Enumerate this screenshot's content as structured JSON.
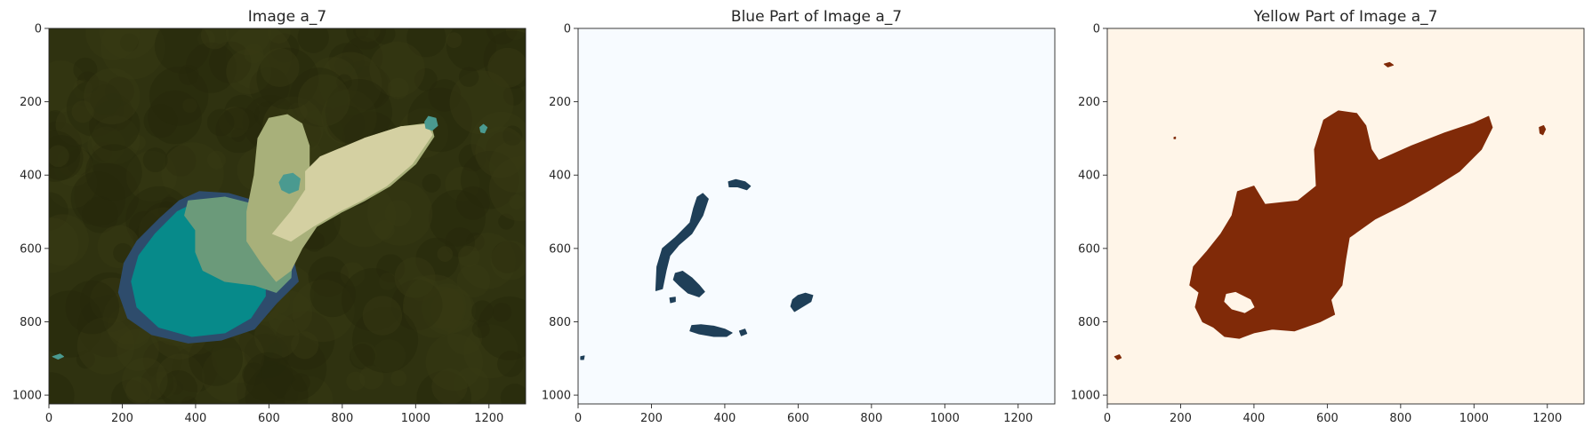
{
  "chart_data": [
    {
      "type": "heatmap",
      "title": "Image a_7",
      "xlim": [
        0,
        1300
      ],
      "ylim": [
        1024,
        0
      ],
      "xticks": [
        0,
        200,
        400,
        600,
        800,
        1000,
        1200
      ],
      "yticks": [
        0,
        200,
        400,
        600,
        800,
        1000
      ],
      "grid": false,
      "colors": {
        "background": "#2f3210",
        "outline": "#2e4c6c",
        "body_teal": "#078a8a",
        "body_green": "#6b9a7a",
        "body_olive": "#a8b07a",
        "ear_light": "#d4d0a2",
        "spot": "#4a9a90"
      },
      "regions": [
        {
          "name": "outline",
          "points": [
            [
              410,
              445
            ],
            [
              355,
              470
            ],
            [
              300,
              520
            ],
            [
              240,
              580
            ],
            [
              205,
              640
            ],
            [
              190,
              720
            ],
            [
              215,
              790
            ],
            [
              280,
              835
            ],
            [
              380,
              858
            ],
            [
              470,
              850
            ],
            [
              560,
              820
            ],
            [
              620,
              750
            ],
            [
              680,
              690
            ],
            [
              660,
              600
            ],
            [
              620,
              520
            ],
            [
              560,
              470
            ],
            [
              490,
              450
            ]
          ]
        },
        {
          "name": "body_teal",
          "points": [
            [
              410,
              470
            ],
            [
              350,
              500
            ],
            [
              290,
              560
            ],
            [
              245,
              620
            ],
            [
              225,
              690
            ],
            [
              240,
              760
            ],
            [
              300,
              815
            ],
            [
              390,
              840
            ],
            [
              480,
              830
            ],
            [
              550,
              790
            ],
            [
              590,
              730
            ],
            [
              590,
              660
            ],
            [
              550,
              580
            ],
            [
              490,
              510
            ]
          ]
        },
        {
          "name": "body_green",
          "points": [
            [
              380,
              470
            ],
            [
              480,
              460
            ],
            [
              560,
              480
            ],
            [
              620,
              520
            ],
            [
              665,
              590
            ],
            [
              660,
              680
            ],
            [
              620,
              720
            ],
            [
              560,
              700
            ],
            [
              480,
              690
            ],
            [
              420,
              660
            ],
            [
              400,
              610
            ],
            [
              400,
              550
            ],
            [
              370,
              510
            ]
          ]
        },
        {
          "name": "body_olive",
          "points": [
            [
              540,
              500
            ],
            [
              560,
              400
            ],
            [
              570,
              300
            ],
            [
              600,
              245
            ],
            [
              650,
              235
            ],
            [
              690,
              260
            ],
            [
              710,
              320
            ],
            [
              710,
              390
            ],
            [
              770,
              350
            ],
            [
              860,
              300
            ],
            [
              960,
              268
            ],
            [
              1040,
              258
            ],
            [
              1050,
              295
            ],
            [
              1000,
              370
            ],
            [
              930,
              430
            ],
            [
              860,
              470
            ],
            [
              800,
              500
            ],
            [
              730,
              540
            ],
            [
              690,
              600
            ],
            [
              660,
              660
            ],
            [
              620,
              690
            ],
            [
              580,
              640
            ],
            [
              540,
              580
            ]
          ]
        },
        {
          "name": "ear_light",
          "points": [
            [
              740,
              350
            ],
            [
              860,
              300
            ],
            [
              960,
              268
            ],
            [
              1030,
              262
            ],
            [
              1045,
              290
            ],
            [
              990,
              370
            ],
            [
              920,
              430
            ],
            [
              850,
              470
            ],
            [
              790,
              500
            ],
            [
              720,
              540
            ],
            [
              660,
              580
            ],
            [
              610,
              560
            ],
            [
              660,
              500
            ],
            [
              700,
              440
            ],
            [
              700,
              390
            ]
          ]
        },
        {
          "name": "spot",
          "points": [
            [
              628,
              420
            ],
            [
              640,
              400
            ],
            [
              665,
              395
            ],
            [
              685,
              410
            ],
            [
              680,
              440
            ],
            [
              655,
              450
            ],
            [
              635,
              440
            ]
          ]
        },
        {
          "name": "spot",
          "points": [
            [
              1025,
              255
            ],
            [
              1035,
              240
            ],
            [
              1055,
              245
            ],
            [
              1060,
              265
            ],
            [
              1045,
              278
            ],
            [
              1028,
              272
            ]
          ]
        },
        {
          "name": "spot",
          "points": [
            [
              1175,
              270
            ],
            [
              1185,
              262
            ],
            [
              1195,
              270
            ],
            [
              1188,
              285
            ],
            [
              1178,
              283
            ]
          ]
        },
        {
          "name": "spot",
          "points": [
            [
              10,
              895
            ],
            [
              30,
              888
            ],
            [
              40,
              895
            ],
            [
              25,
              902
            ]
          ]
        }
      ]
    },
    {
      "type": "heatmap",
      "title": "Blue Part of Image a_7",
      "xlim": [
        0,
        1300
      ],
      "ylim": [
        1024,
        0
      ],
      "xticks": [
        0,
        200,
        400,
        600,
        800,
        1000,
        1200
      ],
      "yticks": [
        0,
        200,
        400,
        600,
        800,
        1000
      ],
      "grid": false,
      "colors": {
        "background": "#f7fbff",
        "foreground": "#1f3f58"
      },
      "regions": [
        {
          "name": "blob",
          "points": [
            [
              325,
              460
            ],
            [
              340,
              450
            ],
            [
              355,
              465
            ],
            [
              340,
              510
            ],
            [
              310,
              560
            ],
            [
              275,
              590
            ],
            [
              250,
              620
            ],
            [
              240,
              660
            ],
            [
              230,
              710
            ],
            [
              212,
              715
            ],
            [
              215,
              650
            ],
            [
              230,
              600
            ],
            [
              265,
              570
            ],
            [
              305,
              530
            ],
            [
              315,
              490
            ]
          ]
        },
        {
          "name": "blob",
          "points": [
            [
              265,
              668
            ],
            [
              285,
              662
            ],
            [
              310,
              680
            ],
            [
              330,
              700
            ],
            [
              345,
              718
            ],
            [
              330,
              732
            ],
            [
              300,
              722
            ],
            [
              275,
              700
            ],
            [
              260,
              685
            ]
          ]
        },
        {
          "name": "blob",
          "points": [
            [
              250,
              735
            ],
            [
              265,
              733
            ],
            [
              265,
              745
            ],
            [
              252,
              748
            ]
          ]
        },
        {
          "name": "blob",
          "points": [
            [
              410,
              418
            ],
            [
              430,
              412
            ],
            [
              455,
              418
            ],
            [
              470,
              430
            ],
            [
              460,
              440
            ],
            [
              435,
              432
            ],
            [
              412,
              432
            ]
          ]
        },
        {
          "name": "blob",
          "points": [
            [
              310,
              810
            ],
            [
              335,
              808
            ],
            [
              370,
              812
            ],
            [
              400,
              820
            ],
            [
              420,
              830
            ],
            [
              405,
              840
            ],
            [
              370,
              840
            ],
            [
              330,
              833
            ],
            [
              305,
              825
            ]
          ]
        },
        {
          "name": "blob",
          "points": [
            [
              440,
              825
            ],
            [
              455,
              820
            ],
            [
              460,
              832
            ],
            [
              445,
              838
            ]
          ]
        },
        {
          "name": "blob",
          "points": [
            [
              585,
              740
            ],
            [
              600,
              728
            ],
            [
              620,
              722
            ],
            [
              640,
              728
            ],
            [
              635,
              745
            ],
            [
              610,
              760
            ],
            [
              590,
              772
            ],
            [
              580,
              758
            ]
          ]
        },
        {
          "name": "blob",
          "points": [
            [
              7,
              895
            ],
            [
              17,
              893
            ],
            [
              15,
              903
            ],
            [
              7,
              903
            ]
          ]
        }
      ]
    },
    {
      "type": "heatmap",
      "title": "Yellow Part of Image a_7",
      "xlim": [
        0,
        1300
      ],
      "ylim": [
        1024,
        0
      ],
      "xticks": [
        0,
        200,
        400,
        600,
        800,
        1000,
        1200
      ],
      "yticks": [
        0,
        200,
        400,
        600,
        800,
        1000
      ],
      "grid": false,
      "colors": {
        "background": "#fff5e8",
        "foreground": "#802a08"
      },
      "regions": [
        {
          "name": "rabbit",
          "points": [
            [
              355,
              445
            ],
            [
              400,
              430
            ],
            [
              430,
              480
            ],
            [
              520,
              470
            ],
            [
              570,
              430
            ],
            [
              565,
              330
            ],
            [
              590,
              250
            ],
            [
              630,
              225
            ],
            [
              680,
              232
            ],
            [
              705,
              265
            ],
            [
              720,
              330
            ],
            [
              740,
              360
            ],
            [
              830,
              320
            ],
            [
              920,
              285
            ],
            [
              1000,
              258
            ],
            [
              1040,
              240
            ],
            [
              1050,
              270
            ],
            [
              1020,
              330
            ],
            [
              960,
              390
            ],
            [
              880,
              440
            ],
            [
              810,
              480
            ],
            [
              730,
              520
            ],
            [
              660,
              570
            ],
            [
              650,
              630
            ],
            [
              640,
              700
            ],
            [
              610,
              740
            ],
            [
              620,
              780
            ],
            [
              580,
              800
            ],
            [
              510,
              825
            ],
            [
              450,
              820
            ],
            [
              400,
              830
            ],
            [
              360,
              845
            ],
            [
              320,
              840
            ],
            [
              290,
              815
            ],
            [
              260,
              800
            ],
            [
              240,
              760
            ],
            [
              250,
              720
            ],
            [
              225,
              700
            ],
            [
              235,
              650
            ],
            [
              270,
              610
            ],
            [
              310,
              560
            ],
            [
              340,
              510
            ]
          ]
        },
        {
          "name": "hole",
          "points": [
            [
              325,
              725
            ],
            [
              350,
              720
            ],
            [
              390,
              740
            ],
            [
              400,
              760
            ],
            [
              375,
              775
            ],
            [
              340,
              765
            ],
            [
              320,
              745
            ]
          ]
        },
        {
          "name": "blob",
          "points": [
            [
              755,
              97
            ],
            [
              770,
              93
            ],
            [
              780,
              100
            ],
            [
              765,
              105
            ]
          ]
        },
        {
          "name": "blob",
          "points": [
            [
              1178,
              270
            ],
            [
              1190,
              265
            ],
            [
              1195,
              275
            ],
            [
              1188,
              290
            ],
            [
              1180,
              286
            ]
          ]
        },
        {
          "name": "blob",
          "points": [
            [
              20,
              895
            ],
            [
              33,
              890
            ],
            [
              38,
              898
            ],
            [
              28,
              903
            ]
          ]
        },
        {
          "name": "blob",
          "points": [
            [
              182,
              297
            ],
            [
              186,
              296
            ],
            [
              186,
              301
            ],
            [
              182,
              301
            ]
          ]
        }
      ]
    }
  ]
}
